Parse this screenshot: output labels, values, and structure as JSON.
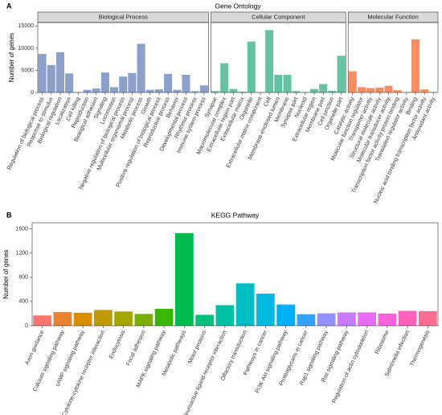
{
  "chart_data": [
    {
      "type": "facet-bar",
      "panel": "A",
      "title": "Gene Ontology",
      "y_label": "Number of genes",
      "ylim": [
        0,
        15800
      ],
      "yticks": [
        0,
        5000,
        10000,
        15000
      ],
      "facets": [
        {
          "name": "Biological Process",
          "color": "#8da0cb",
          "categories": [
            "Regulation of biological process",
            "Response to stimulus",
            "Biological regulation",
            "Localization",
            "Cell killing",
            "Reproduction",
            "Biological adhesion",
            "Signaling",
            "Locomotion",
            "Negative regulation of biological process",
            "Multicellular organismal process",
            "Metabolic process",
            "Growth",
            "Positive regulation of biological process",
            "Reproductive process",
            "Behavior",
            "Developmental process",
            "Rhythmic process",
            "Immune system process"
          ],
          "values": [
            8700,
            6200,
            9100,
            4300,
            100,
            600,
            900,
            4500,
            1200,
            3600,
            4400,
            11000,
            600,
            700,
            4200,
            600,
            4000,
            300,
            1600
          ]
        },
        {
          "name": "Cellular Component",
          "color": "#66c2a5",
          "categories": [
            "Synapse",
            "Macromolecular complex",
            "Extracellular region part",
            "Extracellular matrix",
            "Organelle",
            "Extracellular matrix component",
            "Cell",
            "Membrane-enclosed lumen",
            "Membrane",
            "Synapse part",
            "Nucleoid",
            "Extracellular region",
            "Membrane part",
            "Cell junction",
            "Organelle part"
          ],
          "values": [
            300,
            6600,
            800,
            200,
            11500,
            100,
            14100,
            4000,
            4000,
            300,
            100,
            800,
            1900,
            400,
            8300
          ]
        },
        {
          "name": "Molecular Function",
          "color": "#fc8d62",
          "categories": [
            "Catalytic activity",
            "Molecular function regulator",
            "Transporter activity",
            "Structural molecule activity",
            "Molecular transducer activity",
            "Transcription factor activity protein binding",
            "Translation regulator activity",
            "Binding",
            "Nucleic acid binding transcription factor activity",
            "Antioxidant activity"
          ],
          "values": [
            4800,
            1200,
            1000,
            1100,
            1500,
            500,
            100,
            12000,
            700,
            100
          ]
        }
      ]
    },
    {
      "type": "bar",
      "panel": "B",
      "title": "KEGG Pathway",
      "y_label": "Number of genes",
      "ylim": [
        0,
        1700
      ],
      "yticks": [
        0,
        400,
        800,
        1200,
        1600
      ],
      "categories": [
        "Axon guidance",
        "Calcium signaling pathway",
        "cAMP signaling pathway",
        "Cytokine-cytokine receptor interaction",
        "Endocytosis",
        "Focal adhesion",
        "MAPK signaling pathway",
        "Metabolic pathways",
        "Motor proteins",
        "Neuroactive ligand-receptor interaction",
        "Olfactory transduction",
        "Pathways in cancer",
        "PI3K-Akt signaling pathway",
        "Proteoglycans in cancer",
        "Rap1 signaling pathway",
        "Ras signaling pathway",
        "Regulation of actin cytoskeleton",
        "Ribosome",
        "Salmonella infection",
        "Thermogenesis"
      ],
      "values": [
        170,
        225,
        215,
        260,
        235,
        195,
        280,
        1530,
        180,
        340,
        700,
        530,
        350,
        190,
        205,
        220,
        220,
        200,
        245,
        240
      ],
      "colors": [
        "#f8766d",
        "#ea8331",
        "#d89000",
        "#c09b00",
        "#a3a500",
        "#7cae00",
        "#39b600",
        "#00bb4e",
        "#00bf7d",
        "#00c1a3",
        "#00bfc4",
        "#00bae0",
        "#00b0f6",
        "#35a2ff",
        "#9590ff",
        "#c77cff",
        "#e76bf3",
        "#fa62db",
        "#ff62bc",
        "#ff6c91"
      ]
    }
  ]
}
